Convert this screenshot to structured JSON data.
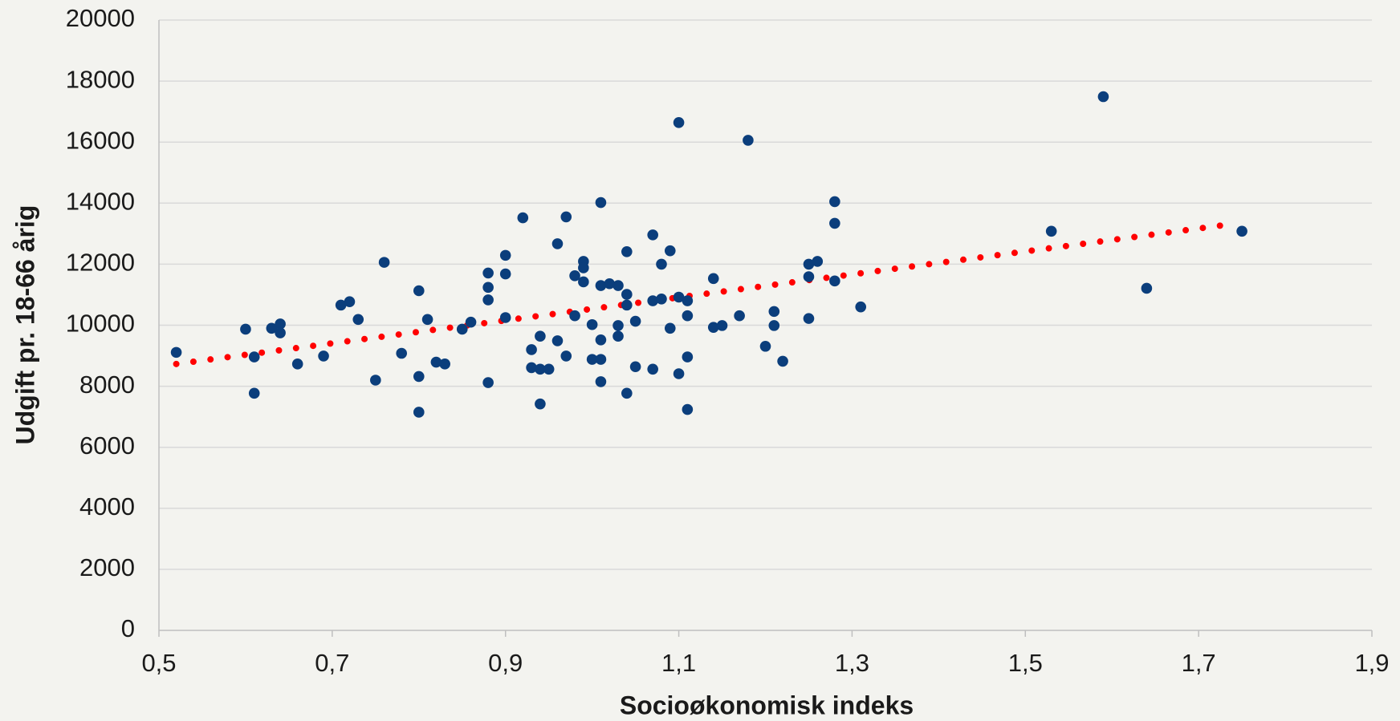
{
  "chart_data": {
    "type": "scatter",
    "xlabel": "Socioøkonomisk indeks",
    "ylabel": "Udgift pr. 18-66 årig",
    "color": "#0b3e7c",
    "x": [
      0.52,
      0.6,
      0.61,
      0.61,
      0.63,
      0.64,
      0.64,
      0.66,
      0.69,
      0.71,
      0.72,
      0.73,
      0.75,
      0.76,
      0.78,
      0.8,
      0.8,
      0.8,
      0.81,
      0.82,
      0.83,
      0.85,
      0.86,
      0.88,
      0.88,
      0.88,
      0.88,
      0.9,
      0.9,
      0.9,
      0.92,
      0.93,
      0.93,
      0.94,
      0.94,
      0.94,
      0.95,
      0.96,
      0.96,
      0.97,
      0.97,
      0.98,
      0.98,
      0.99,
      0.99,
      0.99,
      1.0,
      1.0,
      1.01,
      1.01,
      1.01,
      1.01,
      1.01,
      1.02,
      1.03,
      1.03,
      1.03,
      1.04,
      1.04,
      1.04,
      1.04,
      1.05,
      1.05,
      1.07,
      1.07,
      1.07,
      1.08,
      1.08,
      1.09,
      1.09,
      1.1,
      1.1,
      1.1,
      1.11,
      1.11,
      1.11,
      1.11,
      1.14,
      1.14,
      1.15,
      1.17,
      1.18,
      1.2,
      1.21,
      1.21,
      1.22,
      1.25,
      1.25,
      1.25,
      1.26,
      1.28,
      1.28,
      1.28,
      1.31,
      1.53,
      1.59,
      1.64,
      1.75
    ],
    "values": [
      9110,
      9870,
      8960,
      7770,
      9900,
      10040,
      9750,
      8730,
      8990,
      10660,
      10770,
      10190,
      8200,
      12060,
      9080,
      11130,
      8320,
      7150,
      10190,
      8790,
      8730,
      9870,
      10100,
      11710,
      11240,
      10830,
      8120,
      12290,
      11680,
      10250,
      13520,
      9200,
      8610,
      9640,
      8560,
      7420,
      8560,
      12670,
      9490,
      13550,
      8990,
      11620,
      10310,
      12090,
      11880,
      11420,
      10020,
      8880,
      14020,
      11300,
      9520,
      8880,
      8150,
      11360,
      11300,
      9990,
      9640,
      12410,
      11010,
      10660,
      7770,
      10130,
      8640,
      12960,
      10800,
      8560,
      12000,
      10860,
      12440,
      9900,
      16640,
      10920,
      8410,
      10800,
      10310,
      8960,
      7240,
      11530,
      9930,
      9990,
      10310,
      16060,
      9310,
      10450,
      9990,
      8820,
      12000,
      11590,
      10220,
      12090,
      14050,
      13340,
      11450,
      10600,
      13080,
      17490,
      11210,
      13080
    ],
    "trendline": {
      "x": [
        0.52,
        1.74
      ],
      "values": [
        8730,
        13320
      ],
      "color": "#ff0000"
    },
    "xlim": [
      0.5,
      1.9
    ],
    "xticks": [
      {
        "value": 0.5,
        "label": "0,5"
      },
      {
        "value": 0.7,
        "label": "0,7"
      },
      {
        "value": 0.9,
        "label": "0,9"
      },
      {
        "value": 1.1,
        "label": "1,1"
      },
      {
        "value": 1.3,
        "label": "1,3"
      },
      {
        "value": 1.5,
        "label": "1,5"
      },
      {
        "value": 1.7,
        "label": "1,7"
      },
      {
        "value": 1.9,
        "label": "1,9"
      }
    ],
    "ylim": [
      0,
      20000
    ],
    "yticks": [
      0,
      2000,
      4000,
      6000,
      8000,
      10000,
      12000,
      14000,
      16000,
      18000,
      20000
    ],
    "grid": true
  }
}
